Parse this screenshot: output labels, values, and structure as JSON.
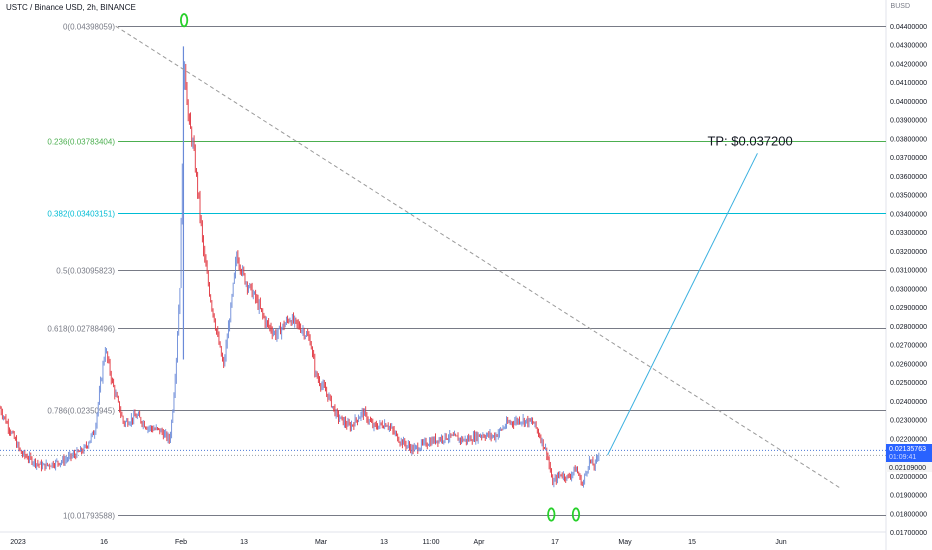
{
  "header": {
    "symbol_title": "USTC / Binance USD, 2h, BINANCE",
    "currency": "BUSD"
  },
  "colors": {
    "background": "#ffffff",
    "grid_line": "#9598a1",
    "fib_neutral": "#787b86",
    "fib_green": "#4caf50",
    "fib_blue": "#00bcd4",
    "candle_down": "#e0303a",
    "candle_up": "#6a8ad8",
    "projection": "#3ab0e0",
    "trendline": "#9a9a9a",
    "marker": "#27d02a",
    "price_tag_bg": "#2962ff",
    "price_tag_text": "#ffffff",
    "current_tag_bg": "#f5f5f5",
    "axis_text": "#131722"
  },
  "chart_data": {
    "type": "candlestick",
    "title": "USTC / Binance USD, 2h, BINANCE",
    "y_unit": "BUSD",
    "ylim": [
      0.0166,
      0.04495
    ],
    "y_ticks": [
      "0.04400000",
      "0.04300000",
      "0.04200000",
      "0.04100000",
      "0.04000000",
      "0.03900000",
      "0.03800000",
      "0.03700000",
      "0.03600000",
      "0.03500000",
      "0.03400000",
      "0.03300000",
      "0.03200000",
      "0.03100000",
      "0.03000000",
      "0.02900000",
      "0.02800000",
      "0.02700000",
      "0.02600000",
      "0.02500000",
      "0.02400000",
      "0.02300000",
      "0.02200000",
      "0.02000000",
      "0.01900000",
      "0.01800000",
      "0.01700000"
    ],
    "x_ticks": [
      "2023",
      "16",
      "Feb",
      "13",
      "Mar",
      "13",
      "11:00",
      "Apr",
      "17",
      "May",
      "15",
      "Jun"
    ],
    "fib_levels": [
      {
        "ratio": "0",
        "price": 0.04398059,
        "label": "0(0.04398059)",
        "color": "#787b86"
      },
      {
        "ratio": "0.236",
        "price": 0.03783404,
        "label": "0.236(0.03783404)",
        "color": "#4caf50"
      },
      {
        "ratio": "0.382",
        "price": 0.03403151,
        "label": "0.382(0.03403151)",
        "color": "#00bcd4"
      },
      {
        "ratio": "0.5",
        "price": 0.03095823,
        "label": "0.5(0.03095823)",
        "color": "#787b86"
      },
      {
        "ratio": "0.618",
        "price": 0.02788496,
        "label": "0.618(0.02788496)",
        "color": "#787b86"
      },
      {
        "ratio": "0.786",
        "price": 0.0235,
        "label": "0.786(0.02350945)",
        "color": "#787b86"
      },
      {
        "ratio": "1",
        "price": 0.01793588,
        "label": "1(0.01793588)",
        "color": "#787b86"
      }
    ],
    "price_path": [
      [
        0.0,
        0.0236
      ],
      [
        1.6,
        0.0212
      ],
      [
        3.2,
        0.0205
      ],
      [
        4.8,
        0.0208
      ],
      [
        6.4,
        0.0214
      ],
      [
        7.2,
        0.0224
      ],
      [
        8.0,
        0.0268
      ],
      [
        8.6,
        0.0248
      ],
      [
        9.4,
        0.0228
      ],
      [
        10.4,
        0.0232
      ],
      [
        11.2,
        0.0226
      ],
      [
        12.2,
        0.0224
      ],
      [
        12.9,
        0.0219
      ],
      [
        13.1,
        0.0232
      ],
      [
        13.4,
        0.0262
      ],
      [
        13.7,
        0.0305
      ],
      [
        14.0,
        0.0425
      ],
      [
        14.3,
        0.0392
      ],
      [
        14.7,
        0.0375
      ],
      [
        15.0,
        0.0355
      ],
      [
        15.5,
        0.0318
      ],
      [
        16.0,
        0.0295
      ],
      [
        16.6,
        0.0272
      ],
      [
        17.0,
        0.0258
      ],
      [
        17.6,
        0.0292
      ],
      [
        18.0,
        0.0318
      ],
      [
        18.6,
        0.0305
      ],
      [
        19.4,
        0.0295
      ],
      [
        20.2,
        0.0282
      ],
      [
        21.0,
        0.0275
      ],
      [
        22.0,
        0.0284
      ],
      [
        23.0,
        0.0278
      ],
      [
        23.6,
        0.0272
      ],
      [
        24.0,
        0.0254
      ],
      [
        25.0,
        0.0242
      ],
      [
        25.6,
        0.0232
      ],
      [
        26.6,
        0.0226
      ],
      [
        27.6,
        0.0234
      ],
      [
        28.4,
        0.0226
      ],
      [
        29.4,
        0.0228
      ],
      [
        30.4,
        0.0219
      ],
      [
        31.4,
        0.0214
      ],
      [
        32.6,
        0.0218
      ],
      [
        34.0,
        0.0221
      ],
      [
        35.4,
        0.0219
      ],
      [
        36.6,
        0.0222
      ],
      [
        37.6,
        0.0221
      ],
      [
        38.6,
        0.0228
      ],
      [
        39.6,
        0.023
      ],
      [
        40.6,
        0.0228
      ],
      [
        41.0,
        0.0222
      ],
      [
        41.6,
        0.0212
      ],
      [
        42.0,
        0.0196
      ],
      [
        42.6,
        0.0201
      ],
      [
        43.2,
        0.0199
      ],
      [
        43.8,
        0.0204
      ],
      [
        44.3,
        0.0195
      ],
      [
        44.8,
        0.0208
      ],
      [
        45.2,
        0.0205
      ],
      [
        45.6,
        0.0213
      ]
    ],
    "markers": [
      {
        "time": 14.0,
        "price": 0.04398059
      },
      {
        "time": 42.0,
        "price": 0.01793588
      },
      {
        "time": 43.8,
        "price": 0.01793588
      }
    ],
    "trendline": {
      "from": {
        "time": 8.8,
        "price": 0.04398059
      },
      "to": {
        "time": 64.0,
        "price": 0.0193
      }
    },
    "projection": {
      "from": {
        "time": 46.2,
        "price": 0.0211
      },
      "to": {
        "time": 57.6,
        "price": 0.0372
      },
      "label": "TP: $0.037200"
    },
    "current_price": {
      "value": "0.02135763",
      "countdown": "01:09:41",
      "secondary": "0.02109000",
      "price": 0.02135763,
      "secondary_price": 0.02109
    },
    "grid": false,
    "legend": "none"
  }
}
